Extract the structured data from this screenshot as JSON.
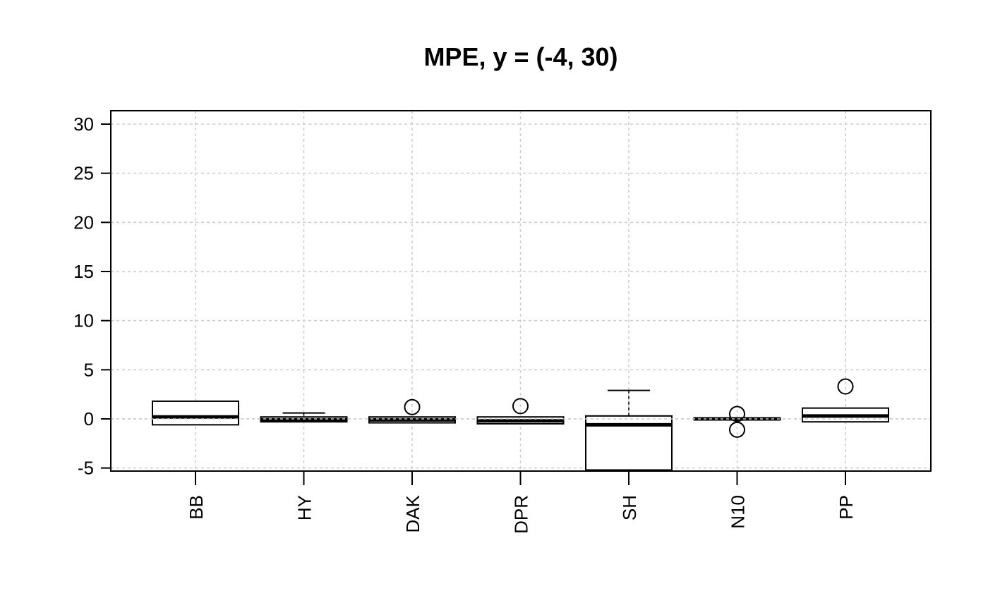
{
  "chart_data": {
    "type": "boxplot",
    "title": "MPE, y = (-4, 30)",
    "xlabel": "",
    "ylabel": "",
    "ylim": [
      -5.2,
      31.3
    ],
    "yticks": [
      30,
      25,
      20,
      15,
      10,
      5,
      0,
      -5
    ],
    "grid": true,
    "categories": [
      "BB",
      "HY",
      "DAK",
      "DPR",
      "SH",
      "N10",
      "PP"
    ],
    "boxes": [
      {
        "label": "BB",
        "min": -0.6,
        "q1": -0.6,
        "median": 0.2,
        "q3": 1.8,
        "max": 1.8,
        "outliers": []
      },
      {
        "label": "HY",
        "min": -0.3,
        "q1": -0.3,
        "median": -0.1,
        "q3": 0.2,
        "max": 0.6,
        "outliers": []
      },
      {
        "label": "DAK",
        "min": -0.4,
        "q1": -0.4,
        "median": -0.1,
        "q3": 0.2,
        "max": 0.2,
        "outliers": [
          1.2
        ]
      },
      {
        "label": "DPR",
        "min": -0.5,
        "q1": -0.5,
        "median": -0.2,
        "q3": 0.2,
        "max": 0.2,
        "outliers": [
          1.3
        ]
      },
      {
        "label": "SH",
        "min": -5.2,
        "q1": -5.2,
        "median": -0.6,
        "q3": 0.3,
        "max": 2.9,
        "outliers": []
      },
      {
        "label": "N10",
        "min": -0.1,
        "q1": -0.1,
        "median": 0.0,
        "q3": 0.1,
        "max": 0.1,
        "outliers": [
          0.5,
          -1.1
        ]
      },
      {
        "label": "PP",
        "min": -0.3,
        "q1": -0.3,
        "median": 0.3,
        "q3": 1.1,
        "max": 1.1,
        "outliers": [
          3.3
        ]
      }
    ]
  }
}
